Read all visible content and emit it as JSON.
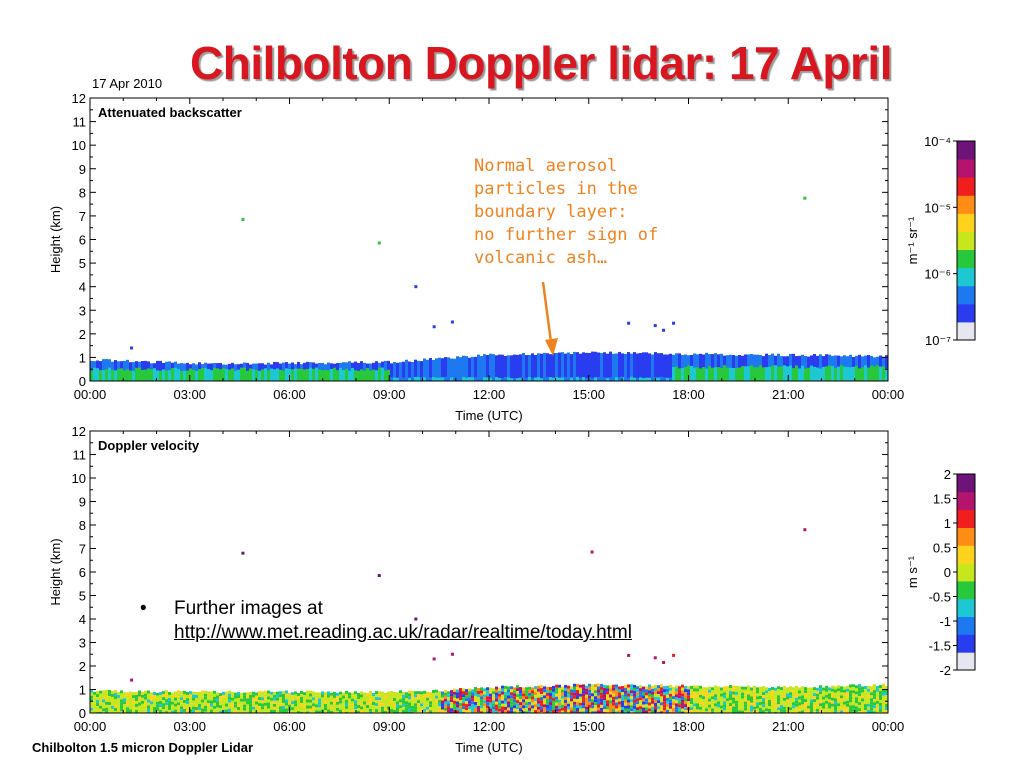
{
  "slide": {
    "title": "Chilbolton Doppler lidar: 17 April",
    "date": "17 Apr 2010",
    "footer": "Chilbolton 1.5 micron Doppler Lidar",
    "annotation_lines": [
      "Normal aerosol",
      "particles in the",
      "boundary layer:",
      "no further sign of",
      "volcanic ash…"
    ],
    "annotation_color": "#f0821e",
    "bullet_text": "Further images at",
    "bullet_link": "http://www.met.reading.ac.uk/radar/realtime/today.html",
    "title_color": "#d8161f"
  },
  "chart_data": [
    {
      "type": "heatmap",
      "title": "Attenuated backscatter",
      "xlabel": "Time (UTC)",
      "ylabel": "Height (km)",
      "x_ticks": [
        "00:00",
        "03:00",
        "06:00",
        "09:00",
        "12:00",
        "15:00",
        "18:00",
        "21:00",
        "00:00"
      ],
      "y_ticks": [
        "0",
        "1",
        "2",
        "3",
        "4",
        "5",
        "6",
        "7",
        "8",
        "9",
        "10",
        "11",
        "12"
      ],
      "xlim_hours": [
        0,
        24
      ],
      "ylim_km": [
        0,
        12
      ],
      "colorbar": {
        "unit_label": "m⁻¹ sr⁻¹",
        "scale": "log",
        "range": [
          1e-07,
          0.0001
        ],
        "ticks": [
          "10⁻⁴",
          "10⁻⁵",
          "10⁻⁶",
          "10⁻⁷"
        ],
        "colors": [
          "#e6e6f0",
          "#2a3cf0",
          "#1e78f0",
          "#1ec8d2",
          "#28c83c",
          "#c8e61e",
          "#ffd21e",
          "#ff8c14",
          "#f01e1e",
          "#b4146e",
          "#6e1478"
        ]
      },
      "boundary_layer_top": [
        {
          "time_h": 0,
          "height_km": 0.9
        },
        {
          "time_h": 3,
          "height_km": 0.75
        },
        {
          "time_h": 6,
          "height_km": 0.75
        },
        {
          "time_h": 9,
          "height_km": 0.8
        },
        {
          "time_h": 10.5,
          "height_km": 0.95
        },
        {
          "time_h": 12,
          "height_km": 1.1
        },
        {
          "time_h": 15,
          "height_km": 1.2
        },
        {
          "time_h": 18,
          "height_km": 1.15
        },
        {
          "time_h": 21,
          "height_km": 1.1
        },
        {
          "time_h": 24,
          "height_km": 1.05
        }
      ],
      "green_layer_segments": [
        {
          "start_h": 0,
          "end_h": 9,
          "top_km": 0.5
        },
        {
          "start_h": 17.5,
          "end_h": 24,
          "top_km": 0.6
        }
      ],
      "isolated_points": [
        {
          "time_h": 1.25,
          "height_km": 1.4,
          "color": "#2a3cf0"
        },
        {
          "time_h": 4.6,
          "height_km": 6.85,
          "color": "#28c83c"
        },
        {
          "time_h": 8.7,
          "height_km": 5.85,
          "color": "#28c83c"
        },
        {
          "time_h": 9.8,
          "height_km": 4.0,
          "color": "#2a3cf0"
        },
        {
          "time_h": 10.35,
          "height_km": 2.3,
          "color": "#2a3cf0"
        },
        {
          "time_h": 10.9,
          "height_km": 2.5,
          "color": "#2a3cf0"
        },
        {
          "time_h": 16.2,
          "height_km": 2.45,
          "color": "#2a3cf0"
        },
        {
          "time_h": 17.0,
          "height_km": 2.35,
          "color": "#2a3cf0"
        },
        {
          "time_h": 17.25,
          "height_km": 2.15,
          "color": "#2a3cf0"
        },
        {
          "time_h": 17.55,
          "height_km": 2.45,
          "color": "#2a3cf0"
        },
        {
          "time_h": 21.5,
          "height_km": 7.75,
          "color": "#28c83c"
        }
      ]
    },
    {
      "type": "heatmap",
      "title": "Doppler velocity",
      "xlabel": "Time (UTC)",
      "ylabel": "Height (km)",
      "x_ticks": [
        "00:00",
        "03:00",
        "06:00",
        "09:00",
        "12:00",
        "15:00",
        "18:00",
        "21:00",
        "00:00"
      ],
      "y_ticks": [
        "0",
        "1",
        "2",
        "3",
        "4",
        "5",
        "6",
        "7",
        "8",
        "9",
        "10",
        "11",
        "12"
      ],
      "xlim_hours": [
        0,
        24
      ],
      "ylim_km": [
        0,
        12
      ],
      "colorbar": {
        "unit_label": "m s⁻¹",
        "scale": "linear",
        "range": [
          -2,
          2
        ],
        "ticks": [
          "2",
          "1.5",
          "1",
          "0.5",
          "0",
          "-0.5",
          "-1",
          "-1.5",
          "-2"
        ],
        "colors": [
          "#e6e6f0",
          "#2a3cf0",
          "#1e78f0",
          "#1ec8d2",
          "#28c83c",
          "#c8e61e",
          "#ffd21e",
          "#ff8c14",
          "#f01e1e",
          "#b4146e",
          "#6e1478"
        ]
      },
      "boundary_layer_top": [
        {
          "time_h": 0,
          "height_km": 0.95
        },
        {
          "time_h": 3,
          "height_km": 0.9
        },
        {
          "time_h": 6,
          "height_km": 0.9
        },
        {
          "time_h": 9,
          "height_km": 0.9
        },
        {
          "time_h": 10.5,
          "height_km": 0.95
        },
        {
          "time_h": 12,
          "height_km": 1.1
        },
        {
          "time_h": 15,
          "height_km": 1.2
        },
        {
          "time_h": 18,
          "height_km": 1.15
        },
        {
          "time_h": 21,
          "height_km": 1.1
        },
        {
          "time_h": 24,
          "height_km": 1.2
        }
      ],
      "turbulent_segment_hours": [
        10.5,
        18
      ],
      "isolated_points": [
        {
          "time_h": 1.25,
          "height_km": 1.4,
          "color": "#b4146e"
        },
        {
          "time_h": 4.6,
          "height_km": 6.8,
          "color": "#6e1478"
        },
        {
          "time_h": 8.7,
          "height_km": 5.85,
          "color": "#6e1478"
        },
        {
          "time_h": 9.8,
          "height_km": 4.0,
          "color": "#6e1478"
        },
        {
          "time_h": 10.35,
          "height_km": 2.3,
          "color": "#b4146e"
        },
        {
          "time_h": 10.9,
          "height_km": 2.5,
          "color": "#b4146e"
        },
        {
          "time_h": 15.1,
          "height_km": 6.85,
          "color": "#b4146e"
        },
        {
          "time_h": 16.2,
          "height_km": 2.45,
          "color": "#b4146e"
        },
        {
          "time_h": 17.0,
          "height_km": 2.35,
          "color": "#b4146e"
        },
        {
          "time_h": 17.25,
          "height_km": 2.15,
          "color": "#b4146e"
        },
        {
          "time_h": 17.55,
          "height_km": 2.45,
          "color": "#f01e1e"
        },
        {
          "time_h": 21.5,
          "height_km": 7.8,
          "color": "#b4146e"
        }
      ]
    }
  ]
}
